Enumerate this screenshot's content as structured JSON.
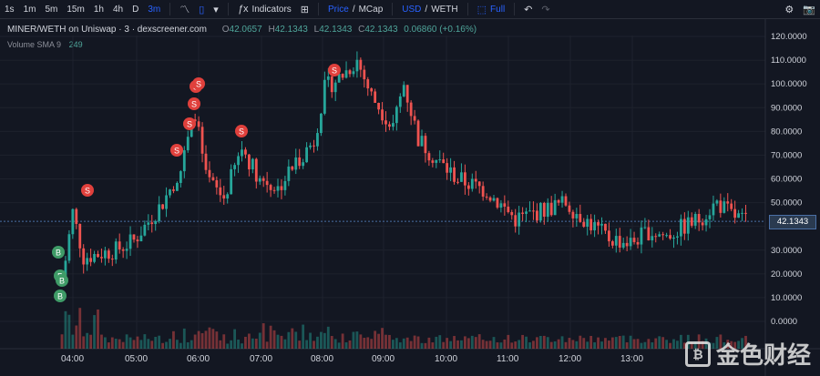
{
  "toolbar": {
    "timeframes": [
      "1s",
      "1m",
      "5m",
      "15m",
      "1h",
      "4h",
      "D",
      "3m"
    ],
    "active_timeframe": "3m",
    "indicators_label": "Indicators",
    "price_label": "Price",
    "mcap_label": "MCap",
    "slash": "/",
    "usd_label": "USD",
    "weth_label": "WETH",
    "full_label": "Full"
  },
  "legend": {
    "title": "MINER/WETH on Uniswap · 3 · dexscreener.com",
    "o_label": "O",
    "o_value": "42.0657",
    "h_label": "H",
    "h_value": "42.1343",
    "l_label": "L",
    "l_value": "42.1343",
    "c_label": "C",
    "c_value": "42.1343",
    "change": "0.06860 (+0.16%)"
  },
  "volume_legend": {
    "label": "Volume SMA 9",
    "value": "249"
  },
  "current_price": "42.1343",
  "watermark": {
    "text": "金色财经"
  },
  "colors": {
    "up": "#26a69a",
    "down": "#ef5350",
    "background": "#131722",
    "accent": "#2962ff"
  },
  "chart_data": {
    "type": "candlestick",
    "y_ticks": [
      "120.0000",
      "110.0000",
      "100.0000",
      "90.0000",
      "80.0000",
      "70.0000",
      "60.0000",
      "50.0000",
      "40.0000",
      "30.0000",
      "20.0000",
      "10.0000",
      "0.0000"
    ],
    "x_ticks": [
      "04:00",
      "05:00",
      "06:00",
      "07:00",
      "08:00",
      "09:00",
      "10:00",
      "11:00",
      "12:00",
      "13:00"
    ],
    "ylim": [
      0,
      120
    ],
    "trend_points": [
      [
        0,
        16
      ],
      [
        3,
        46
      ],
      [
        6,
        27
      ],
      [
        15,
        30
      ],
      [
        20,
        34
      ],
      [
        28,
        50
      ],
      [
        33,
        64
      ],
      [
        37,
        88
      ],
      [
        40,
        60
      ],
      [
        45,
        52
      ],
      [
        50,
        73
      ],
      [
        55,
        60
      ],
      [
        60,
        56
      ],
      [
        65,
        67
      ],
      [
        70,
        76
      ],
      [
        73,
        98
      ],
      [
        78,
        104
      ],
      [
        82,
        110
      ],
      [
        86,
        95
      ],
      [
        92,
        82
      ],
      [
        95,
        100
      ],
      [
        99,
        77
      ],
      [
        104,
        68
      ],
      [
        110,
        60
      ],
      [
        118,
        55
      ],
      [
        126,
        43
      ],
      [
        134,
        47
      ],
      [
        140,
        50
      ],
      [
        146,
        42
      ],
      [
        152,
        35
      ],
      [
        158,
        33
      ],
      [
        163,
        38
      ],
      [
        168,
        36
      ],
      [
        173,
        40
      ],
      [
        177,
        43
      ],
      [
        182,
        50
      ],
      [
        186,
        45
      ],
      [
        190,
        42
      ]
    ],
    "markers": [
      {
        "type": "S",
        "x_time": "04:05",
        "price": 51
      },
      {
        "type": "S",
        "x_time": "05:45",
        "price": 65
      },
      {
        "type": "S",
        "x_time": "05:50",
        "price": 79
      },
      {
        "type": "S",
        "x_time": "05:53",
        "price": 89
      },
      {
        "type": "S",
        "x_time": "05:55",
        "price": 96
      },
      {
        "type": "S",
        "x_time": "06:00",
        "price": 102
      },
      {
        "type": "S",
        "x_time": "06:35",
        "price": 80
      },
      {
        "type": "S",
        "x_time": "08:20",
        "price": 107
      },
      {
        "type": "B",
        "x_time": "03:58",
        "price": 27
      },
      {
        "type": "B",
        "x_time": "03:59",
        "price": 20
      },
      {
        "type": "B",
        "x_time": "04:00",
        "price": 17
      },
      {
        "type": "B",
        "x_time": "04:00",
        "price": 11
      }
    ]
  }
}
